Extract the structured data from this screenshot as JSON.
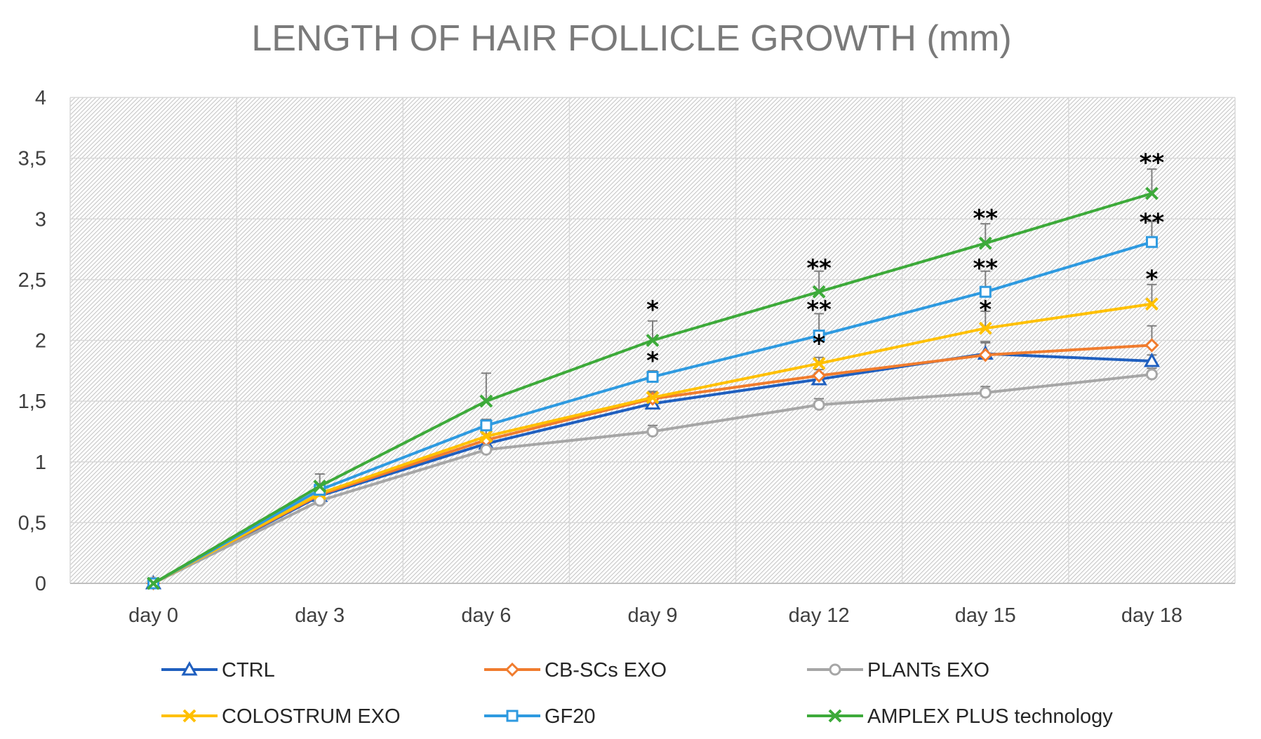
{
  "chart_data": {
    "type": "line",
    "title": "LENGTH OF HAIR FOLLICLE GROWTH (mm)",
    "xlabel": "",
    "ylabel": "",
    "categories": [
      "day 0",
      "day 3",
      "day 6",
      "day 9",
      "day 12",
      "day 15",
      "day 18"
    ],
    "ylim": [
      0,
      4
    ],
    "yticks": [
      0,
      0.5,
      1,
      1.5,
      2,
      2.5,
      3,
      3.5,
      4
    ],
    "ytick_labels": [
      "0",
      "0,5",
      "1",
      "1,5",
      "2",
      "2,5",
      "3",
      "3,5",
      "4"
    ],
    "grid": true,
    "legend_position": "bottom",
    "series": [
      {
        "name": "CTRL",
        "color": "#1f5fbf",
        "marker": "triangle",
        "values": [
          0,
          0.72,
          1.15,
          1.48,
          1.68,
          1.89,
          1.83
        ],
        "errors": [
          0,
          0.05,
          0.05,
          0.05,
          0.05,
          0.1,
          0.05
        ]
      },
      {
        "name": "CB-SCs EXO",
        "color": "#f07c2e",
        "marker": "diamond",
        "values": [
          0,
          0.73,
          1.18,
          1.52,
          1.71,
          1.88,
          1.96
        ],
        "errors": [
          0,
          0.05,
          0.05,
          0.05,
          0.05,
          0.1,
          0.16
        ]
      },
      {
        "name": "PLANTs EXO",
        "color": "#a6a6a6",
        "marker": "circle",
        "values": [
          0,
          0.68,
          1.1,
          1.25,
          1.47,
          1.57,
          1.72
        ],
        "errors": [
          0,
          0.05,
          0.05,
          0.05,
          0.05,
          0.05,
          0.05
        ]
      },
      {
        "name": "COLOSTRUM EXO",
        "color": "#ffc000",
        "marker": "x",
        "values": [
          0,
          0.74,
          1.21,
          1.53,
          1.81,
          2.1,
          2.3
        ],
        "errors": [
          0,
          0.05,
          0.05,
          0.05,
          0.05,
          0.14,
          0.16
        ]
      },
      {
        "name": "GF20",
        "color": "#2e9ae0",
        "marker": "square",
        "values": [
          0,
          0.77,
          1.3,
          1.7,
          2.04,
          2.4,
          2.81
        ],
        "errors": [
          0,
          0.05,
          0.05,
          0.05,
          0.18,
          0.17,
          0.17
        ]
      },
      {
        "name": "AMPLEX PLUS technology",
        "color": "#3daa3a",
        "marker": "x",
        "values": [
          0,
          0.8,
          1.5,
          2.0,
          2.4,
          2.8,
          3.21
        ],
        "errors": [
          0,
          0.1,
          0.23,
          0.16,
          0.17,
          0.16,
          0.2
        ]
      }
    ],
    "annotations": [
      {
        "text": "*",
        "category": "day 9",
        "y": 2.28
      },
      {
        "text": "*",
        "category": "day 9",
        "y": 1.86
      },
      {
        "text": "**",
        "category": "day 12",
        "y": 2.62
      },
      {
        "text": "**",
        "category": "day 12",
        "y": 2.28
      },
      {
        "text": "*",
        "category": "day 12",
        "y": 2.0
      },
      {
        "text": "**",
        "category": "day 15",
        "y": 3.03
      },
      {
        "text": "**",
        "category": "day 15",
        "y": 2.62
      },
      {
        "text": "*",
        "category": "day 15",
        "y": 2.28
      },
      {
        "text": "**",
        "category": "day 18",
        "y": 3.49
      },
      {
        "text": "**",
        "category": "day 18",
        "y": 3.0
      },
      {
        "text": "*",
        "category": "day 18",
        "y": 2.53
      }
    ]
  }
}
